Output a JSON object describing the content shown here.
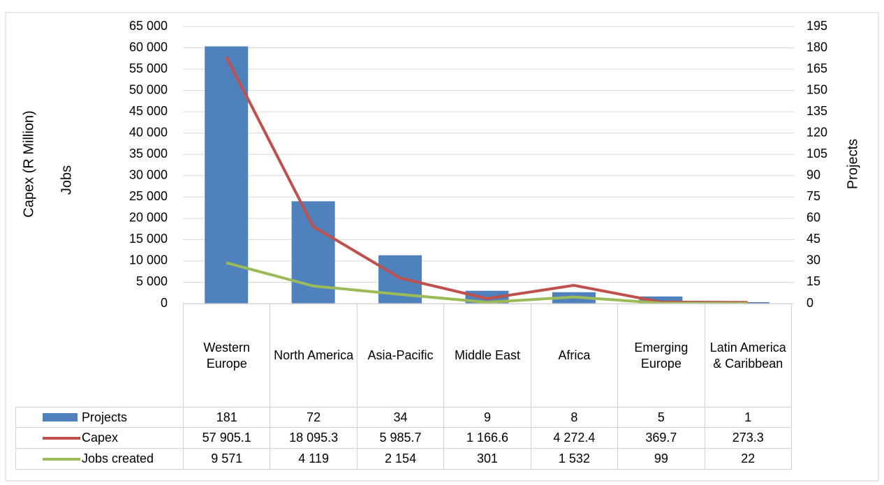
{
  "chart_data": {
    "type": "bar",
    "y_labels": [
      "Capex (R Million)",
      "Jobs"
    ],
    "y2label": "Projects",
    "categories": [
      "Western Europe",
      "North America",
      "Asia-Pacific",
      "Middle East",
      "Africa",
      "Emerging Europe",
      "Latin America & Caribbean"
    ],
    "series": [
      {
        "name": "Projects",
        "type": "bar",
        "axis": "y2",
        "color": "#4f81bd",
        "values": [
          181,
          72,
          34,
          9,
          8,
          5,
          1
        ]
      },
      {
        "name": "Capex",
        "type": "line",
        "color": "#c0504d",
        "values": [
          57905.1,
          18095.3,
          5985.7,
          1166.6,
          4272.4,
          369.7,
          273.3
        ],
        "value_labels": [
          "57 905.1",
          "18 095.3",
          "5 985.7",
          "1 166.6",
          "4 272.4",
          "369.7",
          "273.3"
        ]
      },
      {
        "name": "Jobs created",
        "type": "line",
        "color": "#9bbb59",
        "values": [
          9571,
          4119,
          2154,
          301,
          1532,
          99,
          22
        ],
        "value_labels": [
          "9 571",
          "4 119",
          "2 154",
          "301",
          "1 532",
          "99",
          "22"
        ]
      }
    ],
    "ylim": [
      0,
      65000
    ],
    "yticks": [
      0,
      {
        "value": 5000,
        "label": "5 000"
      },
      {
        "value": 10000,
        "label": "10 000"
      },
      {
        "value": 15000,
        "label": "15 000"
      },
      {
        "value": 20000,
        "label": "20 000"
      },
      {
        "value": 25000,
        "label": "25 000"
      },
      {
        "value": 30000,
        "label": "30 000"
      },
      {
        "value": 35000,
        "label": "35 000"
      },
      {
        "value": 40000,
        "label": "40 000"
      },
      {
        "value": 45000,
        "label": "45 000"
      },
      {
        "value": 50000,
        "label": "50 000"
      },
      {
        "value": 55000,
        "label": "55 000"
      },
      {
        "value": 60000,
        "label": "60 000"
      },
      {
        "value": 65000,
        "label": "65 000"
      }
    ],
    "y2lim": [
      0,
      195
    ],
    "y2ticks": [
      0,
      15,
      30,
      45,
      60,
      75,
      90,
      105,
      120,
      135,
      150,
      165,
      180,
      195
    ],
    "grid": true
  }
}
